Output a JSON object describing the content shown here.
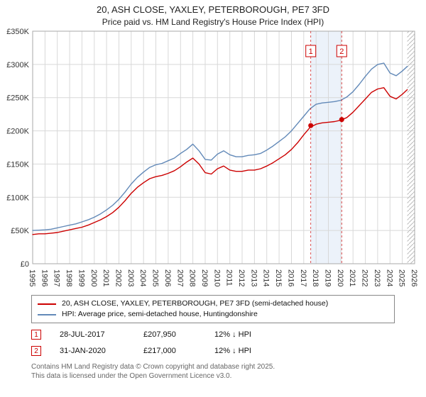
{
  "chart_data": {
    "type": "line",
    "title": "20, ASH CLOSE, YAXLEY, PETERBOROUGH, PE7 3FD",
    "subtitle": "Price paid vs. HM Land Registry's House Price Index (HPI)",
    "x_range": [
      1995,
      2026
    ],
    "y_range": [
      0,
      350000
    ],
    "y_ticks": [
      0,
      50000,
      100000,
      150000,
      200000,
      250000,
      300000,
      350000
    ],
    "y_tick_labels": [
      "£0",
      "£50K",
      "£100K",
      "£150K",
      "£200K",
      "£250K",
      "£300K",
      "£350K"
    ],
    "x_ticks": [
      1995,
      1996,
      1997,
      1998,
      1999,
      2000,
      2001,
      2002,
      2003,
      2004,
      2005,
      2006,
      2007,
      2008,
      2009,
      2010,
      2011,
      2012,
      2013,
      2014,
      2015,
      2016,
      2017,
      2018,
      2019,
      2020,
      2021,
      2022,
      2023,
      2024,
      2025,
      2026
    ],
    "grid": true,
    "future_hatch_start": 2025.4,
    "colors": {
      "property": "#cc0000",
      "hpi": "#6289b8",
      "band": "#dce7f5",
      "grid": "#d8d8d8",
      "border": "#aaaaaa",
      "hatch": "#bbbbbb",
      "axis_text": "#333333"
    },
    "x": [
      1995,
      1995.5,
      1996,
      1996.5,
      1997,
      1997.5,
      1998,
      1998.5,
      1999,
      1999.5,
      2000,
      2000.5,
      2001,
      2001.5,
      2002,
      2002.5,
      2003,
      2003.5,
      2004,
      2004.5,
      2005,
      2005.5,
      2006,
      2006.5,
      2007,
      2007.5,
      2008,
      2008.5,
      2009,
      2009.5,
      2010,
      2010.5,
      2011,
      2011.5,
      2012,
      2012.5,
      2013,
      2013.5,
      2014,
      2014.5,
      2015,
      2015.5,
      2016,
      2016.5,
      2017,
      2017.5,
      2018,
      2018.5,
      2019,
      2019.5,
      2020,
      2020.5,
      2021,
      2021.5,
      2022,
      2022.5,
      2023,
      2023.5,
      2024,
      2024.5,
      2025,
      2025.4
    ],
    "series": [
      {
        "name": "20, ASH CLOSE, YAXLEY, PETERBOROUGH, PE7 3FD (semi-detached house)",
        "color": "#cc0000",
        "values": [
          44000,
          45000,
          45000,
          46000,
          47000,
          49000,
          51000,
          53000,
          55000,
          58000,
          62000,
          66000,
          71000,
          77000,
          85000,
          95000,
          106000,
          115000,
          122000,
          128000,
          131000,
          133000,
          136000,
          140000,
          146000,
          153000,
          159000,
          150000,
          137000,
          135000,
          143000,
          147000,
          141000,
          139000,
          139000,
          141000,
          141000,
          143000,
          147000,
          152000,
          158000,
          164000,
          172000,
          182000,
          194000,
          205000,
          210000,
          212000,
          213000,
          214000,
          216000,
          220000,
          228000,
          238000,
          248000,
          258000,
          263000,
          265000,
          252000,
          248000,
          255000,
          262000
        ]
      },
      {
        "name": "HPI: Average price, semi-detached house, Huntingdonshire",
        "color": "#6289b8",
        "values": [
          50000,
          50500,
          51000,
          52000,
          54000,
          56000,
          58000,
          60000,
          63000,
          66000,
          70000,
          75000,
          81000,
          88000,
          97000,
          108000,
          120000,
          130000,
          138000,
          145000,
          149000,
          151000,
          155000,
          159000,
          166000,
          172000,
          180000,
          170000,
          157000,
          156000,
          165000,
          170000,
          164000,
          161000,
          161000,
          163000,
          164000,
          166000,
          171000,
          177000,
          184000,
          191000,
          200000,
          211000,
          222000,
          233000,
          240000,
          242000,
          243000,
          244000,
          246000,
          251000,
          259000,
          270000,
          282000,
          293000,
          300000,
          302000,
          287000,
          283000,
          290000,
          297000
        ]
      }
    ],
    "sales": [
      {
        "label": "1",
        "x": 2017.57,
        "y": 207950,
        "date": "28-JUL-2017",
        "price": "£207,950",
        "vs_hpi": "12% ↓ HPI"
      },
      {
        "label": "2",
        "x": 2020.08,
        "y": 217000,
        "date": "31-JAN-2020",
        "price": "£217,000",
        "vs_hpi": "12% ↓ HPI"
      }
    ]
  },
  "footer": {
    "line1": "Contains HM Land Registry data © Crown copyright and database right 2025.",
    "line2": "This data is licensed under the Open Government Licence v3.0."
  }
}
